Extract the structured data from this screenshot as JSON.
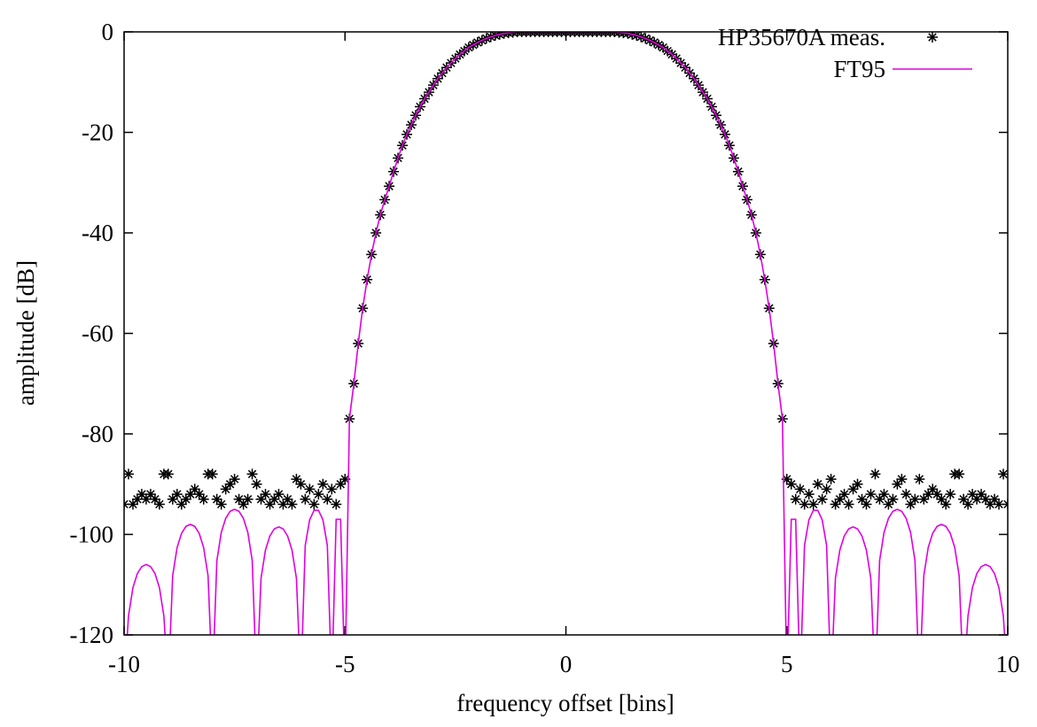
{
  "chart_data": {
    "type": "scatter-line",
    "x_label": "frequency offset [bins]",
    "y_label": "amplitude [dB]",
    "xlim": [
      -10,
      10
    ],
    "ylim": [
      -120,
      0
    ],
    "xticks": [
      -10,
      -5,
      0,
      5,
      10
    ],
    "yticks": [
      0,
      -20,
      -40,
      -60,
      -80,
      -100,
      -120
    ],
    "grid": false,
    "legend": "top-right",
    "x": [
      -10,
      -9.9,
      -9.8,
      -9.7,
      -9.6,
      -9.5,
      -9.4,
      -9.3,
      -9.2,
      -9.1,
      -9,
      -8.9,
      -8.8,
      -8.7,
      -8.6,
      -8.5,
      -8.4,
      -8.3,
      -8.2,
      -8.1,
      -8,
      -7.9,
      -7.8,
      -7.7,
      -7.6,
      -7.5,
      -7.4,
      -7.3,
      -7.2,
      -7.1,
      -7,
      -6.9,
      -6.8,
      -6.7,
      -6.6,
      -6.5,
      -6.4,
      -6.3,
      -6.2,
      -6.1,
      -6,
      -5.9,
      -5.8,
      -5.7,
      -5.6,
      -5.5,
      -5.4,
      -5.3,
      -5.2,
      -5.1,
      -5,
      -4.9,
      -4.8,
      -4.7,
      -4.6,
      -4.5,
      -4.4,
      -4.3,
      -4.2,
      -4.1,
      -4,
      -3.9,
      -3.8,
      -3.7,
      -3.6,
      -3.5,
      -3.4,
      -3.3,
      -3.2,
      -3.1,
      -3,
      -2.9,
      -2.8,
      -2.7,
      -2.6,
      -2.5,
      -2.4,
      -2.3,
      -2.2,
      -2.1,
      -2,
      -1.9,
      -1.8,
      -1.7,
      -1.6,
      -1.5,
      -1.4,
      -1.3,
      -1.2,
      -1.1,
      -1,
      -0.9,
      -0.8,
      -0.7,
      -0.6,
      -0.5,
      -0.4,
      -0.3,
      -0.2,
      -0.1,
      0,
      0.1,
      0.2,
      0.3,
      0.4,
      0.5,
      0.6,
      0.7,
      0.8,
      0.9,
      1,
      1.1,
      1.2,
      1.3,
      1.4,
      1.5,
      1.6,
      1.7,
      1.8,
      1.9,
      2,
      2.1,
      2.2,
      2.3,
      2.4,
      2.5,
      2.6,
      2.7,
      2.8,
      2.9,
      3,
      3.1,
      3.2,
      3.3,
      3.4,
      3.5,
      3.6,
      3.7,
      3.8,
      3.9,
      4,
      4.1,
      4.2,
      4.3,
      4.4,
      4.5,
      4.6,
      4.7,
      4.8,
      4.9,
      5,
      5.1,
      5.2,
      5.3,
      5.4,
      5.5,
      5.6,
      5.7,
      5.8,
      5.9,
      6,
      6.1,
      6.2,
      6.3,
      6.4,
      6.5,
      6.6,
      6.7,
      6.8,
      6.9,
      7,
      7.1,
      7.2,
      7.3,
      7.4,
      7.5,
      7.6,
      7.7,
      7.8,
      7.9,
      8,
      8.1,
      8.2,
      8.3,
      8.4,
      8.5,
      8.6,
      8.7,
      8.8,
      8.9,
      9,
      9.1,
      9.2,
      9.3,
      9.4,
      9.5,
      9.6,
      9.7,
      9.8,
      9.9,
      10
    ],
    "series": [
      {
        "name": "HP35670A meas.",
        "type": "scatter",
        "color": "#000000",
        "values": [
          -94,
          -88,
          -94,
          -93,
          -92,
          -93,
          -92,
          -93,
          -94,
          -88,
          -88,
          -93,
          -92,
          -94,
          -93,
          -92,
          -91,
          -92,
          -93,
          -88,
          -88,
          -93,
          -94,
          -91,
          -90,
          -89,
          -93,
          -94,
          -93,
          -88,
          -90,
          -93,
          -92,
          -94,
          -93,
          -92,
          -94,
          -93,
          -94,
          -89,
          -90,
          -93,
          -91,
          -94,
          -92,
          -90,
          -93,
          -91,
          -94,
          -90,
          -89,
          -77,
          -70,
          -62,
          -55,
          -49.3,
          -44.3,
          -40,
          -36.4,
          -33.4,
          -30.7,
          -27.8,
          -25.1,
          -22.6,
          -20.4,
          -18.5,
          -16.6,
          -14.9,
          -13.3,
          -12,
          -10.6,
          -9.3,
          -8.2,
          -7.1,
          -6.2,
          -5.3,
          -4.5,
          -3.8,
          -3.1,
          -2.6,
          -2.1,
          -1.7,
          -1.3,
          -1,
          -0.7,
          -0.5,
          -0.3,
          -0.2,
          -0.1,
          0,
          0,
          0,
          0,
          0,
          0,
          0,
          0,
          0,
          0,
          0,
          0,
          0,
          0,
          0,
          0,
          0,
          0,
          0,
          0,
          0,
          0,
          0,
          -0.1,
          -0.2,
          -0.3,
          -0.5,
          -0.7,
          -1,
          -1.3,
          -1.7,
          -2.1,
          -2.6,
          -3.1,
          -3.8,
          -4.5,
          -5.3,
          -6.2,
          -7.1,
          -8.2,
          -9.3,
          -10.6,
          -12,
          -13.3,
          -14.9,
          -16.6,
          -18.5,
          -20.4,
          -22.6,
          -25.1,
          -27.8,
          -30.7,
          -33.4,
          -36.4,
          -40,
          -44.3,
          -49.3,
          -55,
          -62,
          -70,
          -77,
          -89,
          -90,
          -93,
          -91,
          -94,
          -92,
          -94,
          -90,
          -93,
          -91,
          -89,
          -94,
          -93,
          -92,
          -94,
          -91,
          -90,
          -93,
          -94,
          -92,
          -88,
          -93,
          -92,
          -94,
          -93,
          -90,
          -89,
          -92,
          -94,
          -93,
          -89,
          -93,
          -92,
          -91,
          -92,
          -93,
          -94,
          -92,
          -88,
          -88,
          -93,
          -94,
          -92,
          -93,
          -92,
          -93,
          -94,
          -93,
          -94,
          -88,
          -94
        ]
      },
      {
        "name": "FT95",
        "type": "line",
        "color": "#e100e1",
        "values": [
          -130,
          -116.2,
          -110.6,
          -107.8,
          -106.4,
          -106,
          -106.4,
          -107.8,
          -110.6,
          -116.2,
          -130,
          -108.2,
          -102.6,
          -99.8,
          -98.4,
          -98,
          -98.4,
          -99.8,
          -102.6,
          -108.2,
          -130,
          -105.2,
          -99.6,
          -96.8,
          -95.4,
          -95,
          -95.4,
          -96.8,
          -99.6,
          -105.2,
          -130,
          -108.7,
          -103.1,
          -100.3,
          -98.9,
          -98.5,
          -98.9,
          -100.3,
          -103.1,
          -108.7,
          -130,
          -102.2,
          -97.1,
          -95.2,
          -95.2,
          -97.1,
          -102.2,
          -130,
          -97,
          -97,
          -130,
          -77,
          -70,
          -62,
          -55,
          -49.3,
          -44.3,
          -40,
          -36.4,
          -33.4,
          -30.7,
          -27.8,
          -25.1,
          -22.6,
          -20.4,
          -18.5,
          -16.6,
          -14.9,
          -13.3,
          -12,
          -10.6,
          -9.3,
          -8.2,
          -7.1,
          -6.2,
          -5.3,
          -4.5,
          -3.8,
          -3.1,
          -2.6,
          -2.1,
          -1.7,
          -1.3,
          -1,
          -0.7,
          -0.5,
          -0.3,
          -0.2,
          -0.1,
          0,
          0,
          0,
          0,
          0,
          0,
          0,
          0,
          0,
          0,
          0,
          0,
          0,
          0,
          0,
          0,
          0,
          0,
          0,
          0,
          0,
          0,
          0,
          -0.1,
          -0.2,
          -0.3,
          -0.5,
          -0.7,
          -1,
          -1.3,
          -1.7,
          -2.1,
          -2.6,
          -3.1,
          -3.8,
          -4.5,
          -5.3,
          -6.2,
          -7.1,
          -8.2,
          -9.3,
          -10.6,
          -12,
          -13.3,
          -14.9,
          -16.6,
          -18.5,
          -20.4,
          -22.6,
          -25.1,
          -27.8,
          -30.7,
          -33.4,
          -36.4,
          -40,
          -44.3,
          -49.3,
          -55,
          -62,
          -70,
          -77,
          -130,
          -97,
          -97,
          -130,
          -102.2,
          -97.1,
          -95.2,
          -95.2,
          -97.1,
          -102.2,
          -130,
          -108.7,
          -103.1,
          -100.3,
          -98.9,
          -98.5,
          -98.9,
          -100.3,
          -103.1,
          -108.7,
          -130,
          -105.2,
          -99.6,
          -96.8,
          -95.4,
          -95,
          -95.4,
          -96.8,
          -99.6,
          -105.2,
          -130,
          -108.2,
          -102.6,
          -99.8,
          -98.4,
          -98,
          -98.4,
          -99.8,
          -102.6,
          -108.2,
          -130,
          -116.2,
          -110.6,
          -107.8,
          -106.4,
          -106,
          -106.4,
          -107.8,
          -110.6,
          -116.2,
          -130
        ]
      }
    ]
  }
}
